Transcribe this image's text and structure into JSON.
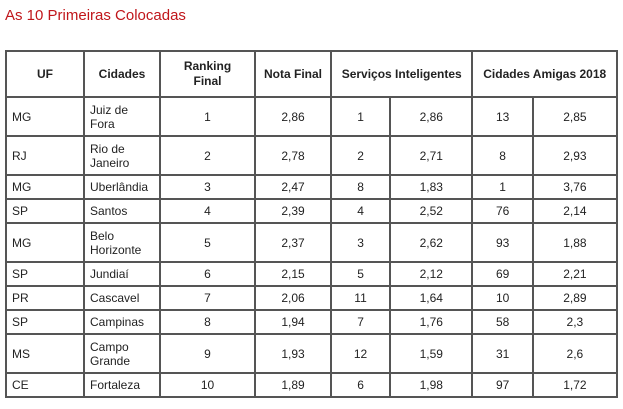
{
  "title": "As 10 Primeiras Colocadas",
  "headers": [
    "UF",
    "Cidades",
    "Ranking Final",
    "Nota Final",
    "Serviços Inteligentes",
    "Cidades Amigas 2018"
  ],
  "rows": [
    {
      "uf": "MG",
      "city": "Juiz de Fora",
      "rank": "1",
      "nota": "2,86",
      "si_rank": "1",
      "si_nota": "2,86",
      "ca_rank": "13",
      "ca_nota": "2,85",
      "two": true
    },
    {
      "uf": "RJ",
      "city": "Rio de Janeiro",
      "rank": "2",
      "nota": "2,78",
      "si_rank": "2",
      "si_nota": "2,71",
      "ca_rank": "8",
      "ca_nota": "2,93",
      "two": true
    },
    {
      "uf": "MG",
      "city": "Uberlândia",
      "rank": "3",
      "nota": "2,47",
      "si_rank": "8",
      "si_nota": "1,83",
      "ca_rank": "1",
      "ca_nota": "3,76",
      "two": false
    },
    {
      "uf": "SP",
      "city": "Santos",
      "rank": "4",
      "nota": "2,39",
      "si_rank": "4",
      "si_nota": "2,52",
      "ca_rank": "76",
      "ca_nota": "2,14",
      "two": false
    },
    {
      "uf": "MG",
      "city": "Belo Horizonte",
      "rank": "5",
      "nota": "2,37",
      "si_rank": "3",
      "si_nota": "2,62",
      "ca_rank": "93",
      "ca_nota": "1,88",
      "two": true
    },
    {
      "uf": "SP",
      "city": "Jundiaí",
      "rank": "6",
      "nota": "2,15",
      "si_rank": "5",
      "si_nota": "2,12",
      "ca_rank": "69",
      "ca_nota": "2,21",
      "two": false
    },
    {
      "uf": "PR",
      "city": "Cascavel",
      "rank": "7",
      "nota": "2,06",
      "si_rank": "11",
      "si_nota": "1,64",
      "ca_rank": "10",
      "ca_nota": "2,89",
      "two": false
    },
    {
      "uf": "SP",
      "city": "Campinas",
      "rank": "8",
      "nota": "1,94",
      "si_rank": "7",
      "si_nota": "1,76",
      "ca_rank": "58",
      "ca_nota": "2,3",
      "two": false
    },
    {
      "uf": "MS",
      "city": "Campo Grande",
      "rank": "9",
      "nota": "1,93",
      "si_rank": "12",
      "si_nota": "1,59",
      "ca_rank": "31",
      "ca_nota": "2,6",
      "two": true
    },
    {
      "uf": "CE",
      "city": "Fortaleza",
      "rank": "10",
      "nota": "1,89",
      "si_rank": "6",
      "si_nota": "1,98",
      "ca_rank": "97",
      "ca_nota": "1,72",
      "two": false
    }
  ]
}
